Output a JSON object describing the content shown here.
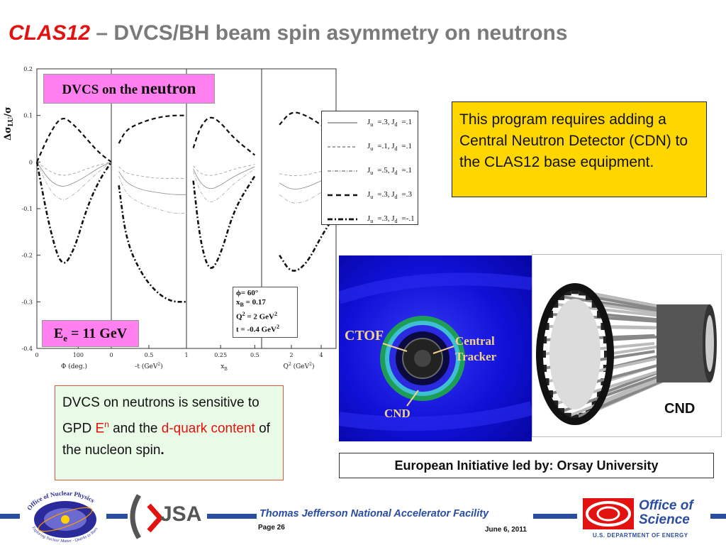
{
  "title": {
    "main": "CLAS12",
    "rest": " – DVCS/BH beam spin asymmetry on neutrons"
  },
  "chart": {
    "ylabel": "Δσ",
    "ylabel_sub": "LU",
    "ylabel_tail": "/σ",
    "yticks": [
      "0.2",
      "0.1",
      "0",
      "-0.1",
      "-0.2",
      "-0.3",
      "-0.4"
    ],
    "panels": [
      {
        "xlabel": "Φ (deg.)",
        "ticks": [
          "0",
          "100"
        ]
      },
      {
        "xlabel": "-t (GeV",
        "xlabel_sup": "2",
        "xlabel_tail": ")",
        "ticks": [
          "0",
          "0.5",
          "1"
        ]
      },
      {
        "xlabel": "x",
        "xlabel_sub": "B",
        "ticks": [
          "0.25",
          "0.5"
        ]
      },
      {
        "xlabel": "Q",
        "xlabel_sup": "2",
        "xlabel_tail": " (GeV",
        "xlabel_sup2": "2",
        "xlabel_tail2": ")",
        "ticks": [
          "2",
          "4"
        ]
      }
    ],
    "pink_top": {
      "small": "DVCS on the ",
      "big": "neutron"
    },
    "pink_bottom": {
      "e": "E",
      "sub": "e",
      "rest": " = 11 GeV"
    },
    "legend": [
      {
        "a": "J",
        "asub": "u",
        "b": "=.3, J",
        "bsub": "d",
        "c": "=.1",
        "style": "solid"
      },
      {
        "a": "J",
        "asub": "u",
        "b": "=.1, J",
        "bsub": "d",
        "c": "=.1",
        "style": "dashed"
      },
      {
        "a": "J",
        "asub": "u",
        "b": "=.5, J",
        "bsub": "d",
        "c": "=.1",
        "style": "dashdot"
      },
      {
        "a": "J",
        "asub": "u",
        "b": "=.3, J",
        "bsub": "d",
        "c": "=.3",
        "style": "bolddash"
      },
      {
        "a": "J",
        "asub": "u",
        "b": "=.3, J",
        "bsub": "d",
        "c": "=-.1",
        "style": "bolddashdot"
      }
    ],
    "kinematics": {
      "phi": "ϕ= 60°",
      "xb": "x",
      "xb_sub": "B",
      "xb_rest": " = 0.17",
      "q2": "Q",
      "q2_sup": "2",
      "q2_rest": " = 2 GeV",
      "q2_sup2": "2",
      "t": "t = -0.4 GeV",
      "t_sup": "2"
    }
  },
  "chart_data": {
    "type": "line",
    "ylabel": "Δσ_LU/σ",
    "ylim": [
      -0.4,
      0.2
    ],
    "panels": [
      {
        "xlabel": "Φ (deg.)",
        "x": [
          0,
          30,
          60,
          90,
          120,
          150,
          180
        ],
        "series": [
          {
            "name": "Ju=.3, Jd=.1",
            "values": [
              0,
              -0.04,
              -0.055,
              -0.045,
              -0.03,
              -0.012,
              0
            ]
          },
          {
            "name": "Ju=.1, Jd=.1",
            "values": [
              0,
              -0.02,
              -0.03,
              -0.025,
              -0.015,
              -0.006,
              0
            ]
          },
          {
            "name": "Ju=.5, Jd=.1",
            "values": [
              0,
              -0.06,
              -0.085,
              -0.07,
              -0.045,
              -0.02,
              0
            ]
          },
          {
            "name": "Ju=.3, Jd=.3",
            "values": [
              0,
              0.06,
              0.1,
              0.08,
              0.05,
              0.02,
              0
            ]
          },
          {
            "name": "Ju=.3, Jd=-.1",
            "values": [
              0,
              -0.14,
              -0.23,
              -0.19,
              -0.1,
              -0.04,
              0
            ]
          }
        ]
      },
      {
        "xlabel": "-t (GeV2)",
        "x": [
          0.1,
          0.2,
          0.4,
          0.6,
          0.8,
          1.0
        ],
        "series": [
          {
            "name": "Ju=.3, Jd=.1",
            "values": [
              -0.02,
              -0.045,
              -0.06,
              -0.065,
              -0.07,
              -0.07
            ]
          },
          {
            "name": "Ju=.1, Jd=.1",
            "values": [
              -0.01,
              -0.025,
              -0.03,
              -0.035,
              -0.035,
              -0.035
            ]
          },
          {
            "name": "Ju=.5, Jd=.1",
            "values": [
              -0.03,
              -0.07,
              -0.09,
              -0.1,
              -0.11,
              -0.11
            ]
          },
          {
            "name": "Ju=.3, Jd=.3",
            "values": [
              0.04,
              0.07,
              0.085,
              0.095,
              0.1,
              0.1
            ]
          },
          {
            "name": "Ju=.3, Jd=-.1",
            "values": [
              -0.05,
              -0.17,
              -0.24,
              -0.28,
              -0.3,
              -0.3
            ]
          }
        ]
      },
      {
        "xlabel": "xB",
        "x": [
          0.05,
          0.1,
          0.17,
          0.25,
          0.35,
          0.5
        ],
        "series": [
          {
            "name": "Ju=.3, Jd=.1",
            "values": [
              -0.015,
              -0.045,
              -0.06,
              -0.05,
              -0.03,
              -0.01
            ]
          },
          {
            "name": "Ju=.1, Jd=.1",
            "values": [
              -0.008,
              -0.025,
              -0.03,
              -0.025,
              -0.015,
              -0.005
            ]
          },
          {
            "name": "Ju=.5, Jd=.1",
            "values": [
              -0.02,
              -0.065,
              -0.09,
              -0.075,
              -0.045,
              -0.015
            ]
          },
          {
            "name": "Ju=.3, Jd=.3",
            "values": [
              0.03,
              0.075,
              0.1,
              0.085,
              0.05,
              0.015
            ]
          },
          {
            "name": "Ju=.3, Jd=-.1",
            "values": [
              -0.04,
              -0.17,
              -0.24,
              -0.2,
              -0.1,
              -0.03
            ]
          }
        ]
      },
      {
        "xlabel": "Q2 (GeV2)",
        "x": [
          1.2,
          2,
          3,
          4,
          4.8
        ],
        "series": [
          {
            "name": "Ju=.3, Jd=.1",
            "values": [
              -0.045,
              -0.06,
              -0.055,
              -0.04,
              -0.03
            ]
          },
          {
            "name": "Ju=.1, Jd=.1",
            "values": [
              -0.025,
              -0.03,
              -0.028,
              -0.02,
              -0.015
            ]
          },
          {
            "name": "Ju=.5, Jd=.1",
            "values": [
              -0.07,
              -0.09,
              -0.085,
              -0.065,
              -0.05
            ]
          },
          {
            "name": "Ju=.3, Jd=.3",
            "values": [
              0.08,
              0.11,
              0.1,
              0.08,
              0.06
            ]
          },
          {
            "name": "Ju=.3, Jd=-.1",
            "values": [
              -0.2,
              -0.24,
              -0.22,
              -0.16,
              -0.12
            ]
          }
        ]
      }
    ]
  },
  "yellow_box": {
    "text": "This program requires adding a Central Neutron Detector (CDN) to the CLAS12 base equipment."
  },
  "green_box": {
    "p1": "DVCS on neutrons is sensitive to GPD ",
    "e": "E",
    "e_sup": "n",
    "p2": " and the ",
    "dquark": "d-quark content",
    "p3": " of the nucleon spin",
    "p4": "."
  },
  "detector": {
    "ctof": "CTOF",
    "central1": "Central",
    "central2": "Tracker",
    "cnd": "CND",
    "colors": {
      "bg": "#0b0bd0",
      "label": "#f2d38a"
    }
  },
  "cnd_label": "CND",
  "orsay": "European Initiative led by: Orsay University",
  "footer": {
    "lab": "Thomas Jefferson National Accelerator Facility",
    "page": "Page 26",
    "date": "June 6, 2011",
    "onp_top": "Office of Nuclear Physics",
    "onp_bottom": "Exploring Nuclear Matter · Quarks to Stars",
    "jsa": "JSA",
    "doe1": "Office of",
    "doe2": "Science",
    "doe3": "U.S. DEPARTMENT OF ENERGY"
  },
  "colors": {
    "title_red": "#e1120f",
    "title_gray": "#7a7a7a",
    "pink": "#ff80ee",
    "yellow": "#ffd700",
    "green_bg": "#e9fbe6",
    "footer_blue": "#2a4da0"
  }
}
